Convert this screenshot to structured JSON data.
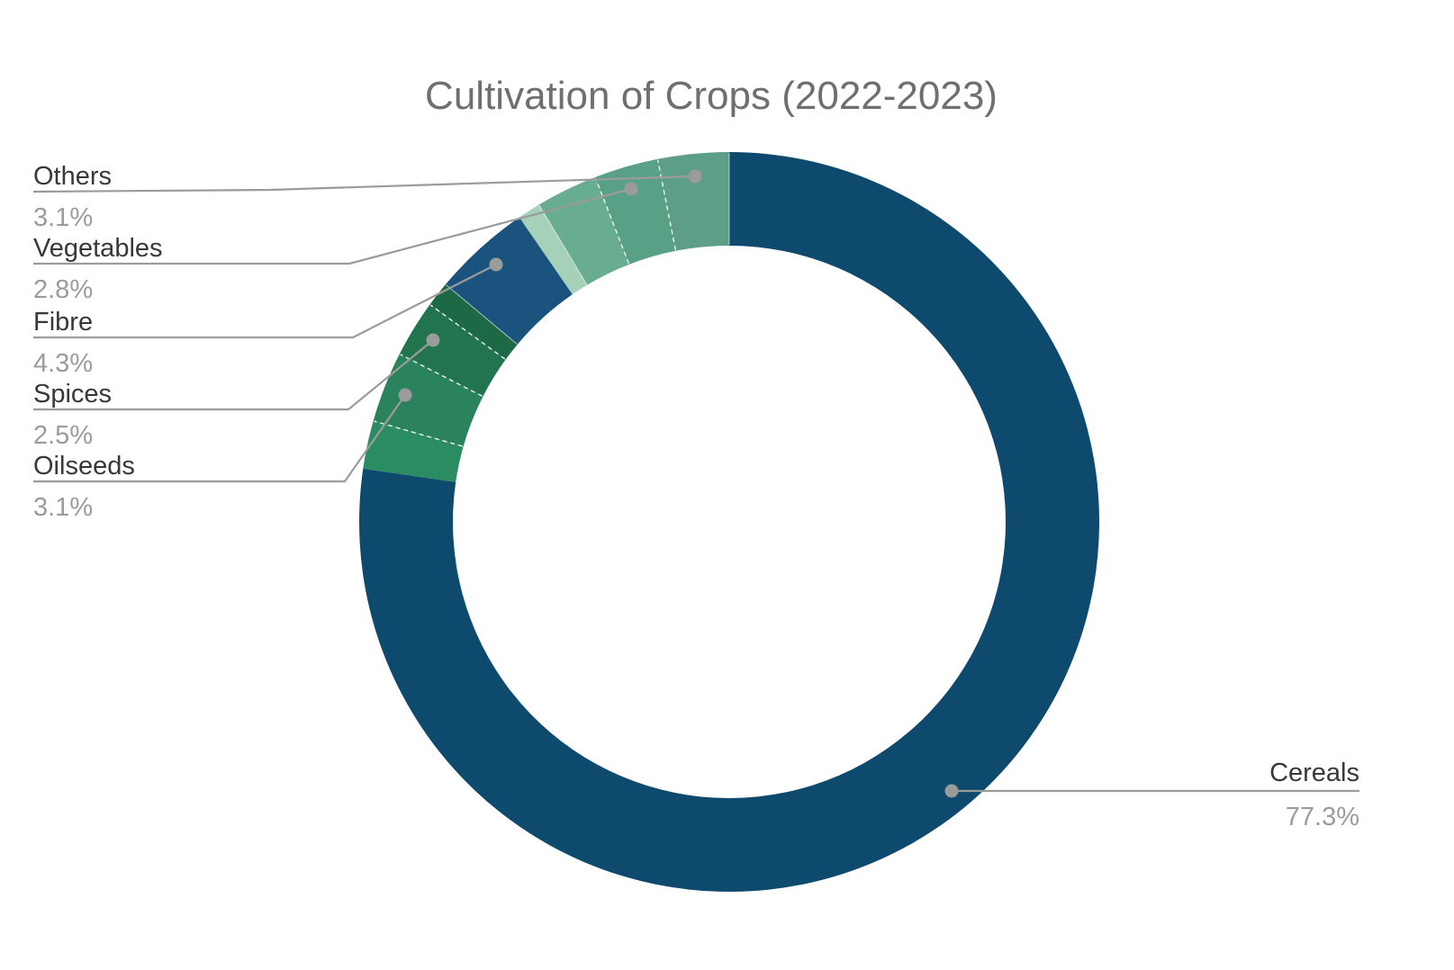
{
  "title": "Cultivation of Crops (2022-2023)",
  "chart_data": {
    "type": "pie",
    "subtype": "donut",
    "title": "Cultivation of Crops (2022-2023)",
    "start_angle": "12-oclock",
    "direction": "clockwise",
    "unit": "%",
    "legend_position": "labeled-callouts",
    "slices": [
      {
        "label": "Cereals",
        "value": 77.3,
        "display": "77.3%",
        "color": "#0d4a6e",
        "callout_side": "right"
      },
      {
        "label": "",
        "value": 2.1,
        "display": "",
        "color": "#2c8c61",
        "callout_side": null
      },
      {
        "label": "Oilseeds",
        "value": 3.1,
        "display": "3.1%",
        "color": "#2a835c",
        "callout_side": "left"
      },
      {
        "label": "Spices",
        "value": 2.5,
        "display": "2.5%",
        "color": "#22744e",
        "callout_side": "left"
      },
      {
        "label": "",
        "value": 1.1,
        "display": "",
        "color": "#1d6945",
        "callout_side": null
      },
      {
        "label": "Fibre",
        "value": 4.3,
        "display": "4.3%",
        "color": "#1a537e",
        "callout_side": "left"
      },
      {
        "label": "",
        "value": 1.0,
        "display": "",
        "color": "#a5d1b9",
        "callout_side": null
      },
      {
        "label": "",
        "value": 2.7,
        "display": "",
        "color": "#68ad90",
        "callout_side": null
      },
      {
        "label": "Vegetables",
        "value": 2.8,
        "display": "2.8%",
        "color": "#58a186",
        "callout_side": "left"
      },
      {
        "label": "Others",
        "value": 3.1,
        "display": "3.1%",
        "color": "#5c9e87",
        "callout_side": "left"
      }
    ]
  },
  "callouts": {
    "others": {
      "label": "Others",
      "value": "3.1%"
    },
    "vegetables": {
      "label": "Vegetables",
      "value": "2.8%"
    },
    "fibre": {
      "label": "Fibre",
      "value": "4.3%"
    },
    "spices": {
      "label": "Spices",
      "value": "2.5%"
    },
    "oilseeds": {
      "label": "Oilseeds",
      "value": "3.1%"
    },
    "cereals": {
      "label": "Cereals",
      "value": "77.3%"
    }
  },
  "colors": {
    "leader_line": "#9b9b9b",
    "label_text": "#383838",
    "value_text": "#9b9b9b",
    "title_text": "#6f6f6f",
    "background": "#ffffff"
  }
}
